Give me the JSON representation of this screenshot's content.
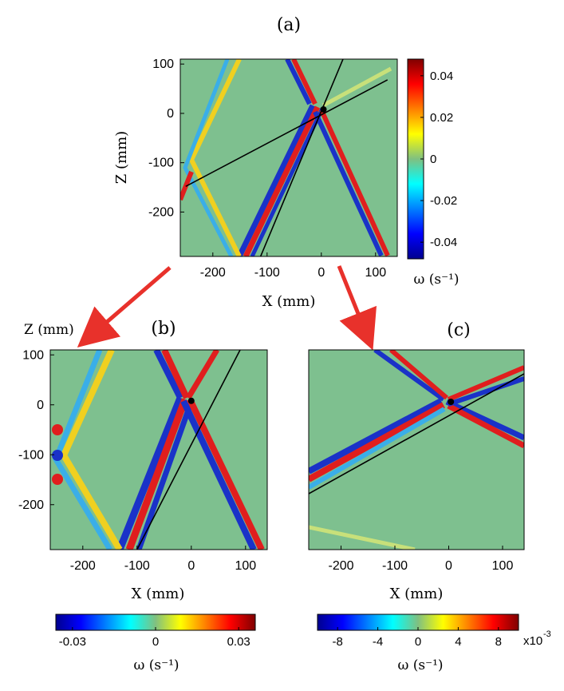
{
  "chart_data": [
    {
      "type": "heatmap",
      "panel_label": "(a)",
      "xlabel": "X (mm)",
      "ylabel": "Z (mm)",
      "xlim": [
        -260,
        140
      ],
      "ylim": [
        -290,
        110
      ],
      "xticks": [
        -200,
        -100,
        0,
        100
      ],
      "yticks": [
        100,
        0,
        -100,
        -200
      ],
      "source_point": [
        4,
        8
      ],
      "lines": [
        {
          "x1": -250,
          "y1": -148,
          "x2": 122,
          "y2": 68
        },
        {
          "x1": -112,
          "y1": -290,
          "x2": 40,
          "y2": 110
        }
      ],
      "colorbar": {
        "label": "ω (s⁻¹)",
        "range": [
          -0.048,
          0.048
        ],
        "ticks": [
          0.04,
          0.02,
          0,
          -0.02,
          -0.04
        ],
        "tick_labels": [
          "0.04",
          "0.02",
          "0",
          "-0.02",
          "-0.04"
        ],
        "orientation": "vertical"
      }
    },
    {
      "type": "heatmap",
      "panel_label": "(b)",
      "xlabel": "X (mm)",
      "ylabel": "Z (mm)",
      "xlim": [
        -260,
        140
      ],
      "ylim": [
        -290,
        110
      ],
      "xticks": [
        -200,
        -100,
        0,
        100
      ],
      "yticks": [
        100,
        0,
        -100,
        -200
      ],
      "source_point": [
        0,
        8
      ],
      "lines": [
        {
          "x1": -100,
          "y1": -290,
          "x2": 90,
          "y2": 110
        }
      ],
      "colorbar": {
        "label": "ω (s⁻¹)",
        "range": [
          -0.036,
          0.036
        ],
        "ticks": [
          -0.03,
          0,
          0.03
        ],
        "tick_labels": [
          "-0.03",
          "0",
          "0.03"
        ],
        "orientation": "horizontal"
      }
    },
    {
      "type": "heatmap",
      "panel_label": "(c)",
      "xlabel": "X (mm)",
      "ylabel": "",
      "xlim": [
        -260,
        140
      ],
      "ylim": [
        -290,
        110
      ],
      "xticks": [
        -200,
        -100,
        0,
        100
      ],
      "source_point": [
        4,
        6
      ],
      "lines": [
        {
          "x1": -260,
          "y1": -178,
          "x2": 140,
          "y2": 62
        }
      ],
      "colorbar": {
        "label": "ω (s⁻¹)",
        "range": [
          -10,
          10
        ],
        "ticks": [
          -8,
          -4,
          0,
          4,
          8
        ],
        "tick_labels": [
          "-8",
          "-4",
          "0",
          "4",
          "8"
        ],
        "multiplier": "x10",
        "multiplier_exp": "-3",
        "orientation": "horizontal"
      }
    }
  ],
  "colors": {
    "arrow": "#e8312b",
    "background": "#7ec08f",
    "line": "#000000"
  }
}
